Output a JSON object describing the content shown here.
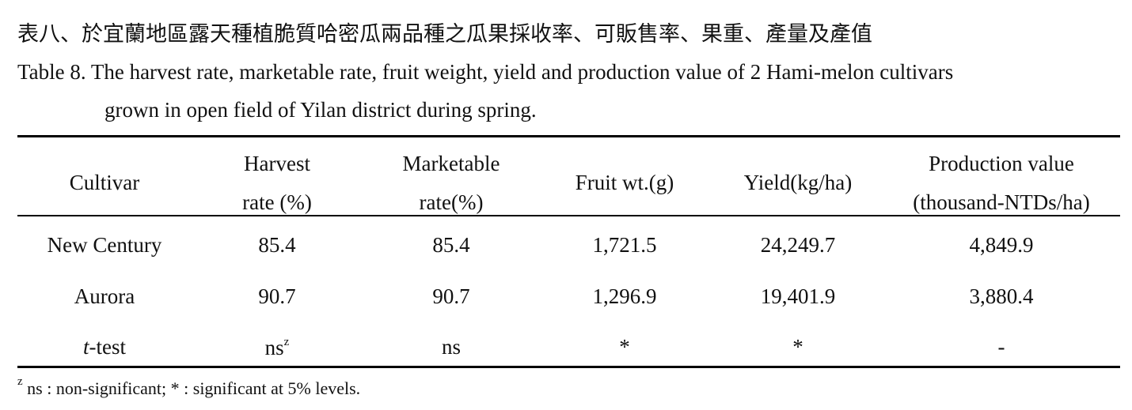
{
  "caption": {
    "zh": "表八、於宜蘭地區露天種植脆質哈密瓜兩品種之瓜果採收率、可販售率、果重、產量及產值",
    "en_line1": "Table 8. The harvest rate, marketable rate, fruit weight, yield and production value of 2 Hami-melon cultivars",
    "en_line2": "grown in open field of Yilan district during spring."
  },
  "table": {
    "header": [
      [
        "Cultivar"
      ],
      [
        "Harvest",
        "rate (%)"
      ],
      [
        "Marketable",
        "rate(%)"
      ],
      [
        "Fruit wt.(g)"
      ],
      [
        "Yield(kg/ha)"
      ],
      [
        "Production value",
        "(thousand-NTDs/ha)"
      ]
    ],
    "rows": [
      [
        "New Century",
        "85.4",
        "85.4",
        "1,721.5",
        "24,249.7",
        "4,849.9"
      ],
      [
        "Aurora",
        "90.7",
        "90.7",
        "1,296.9",
        "19,401.9",
        "3,880.4"
      ]
    ],
    "ttest": {
      "label_italic": "t",
      "label_rest": "-test",
      "harvest": "ns",
      "harvest_sup": "z",
      "marketable": "ns",
      "fruit": "*",
      "yield": "*",
      "value": "-"
    }
  },
  "footnote": {
    "sup": "z",
    "text": " ns : non-significant; * : significant at 5% levels."
  }
}
